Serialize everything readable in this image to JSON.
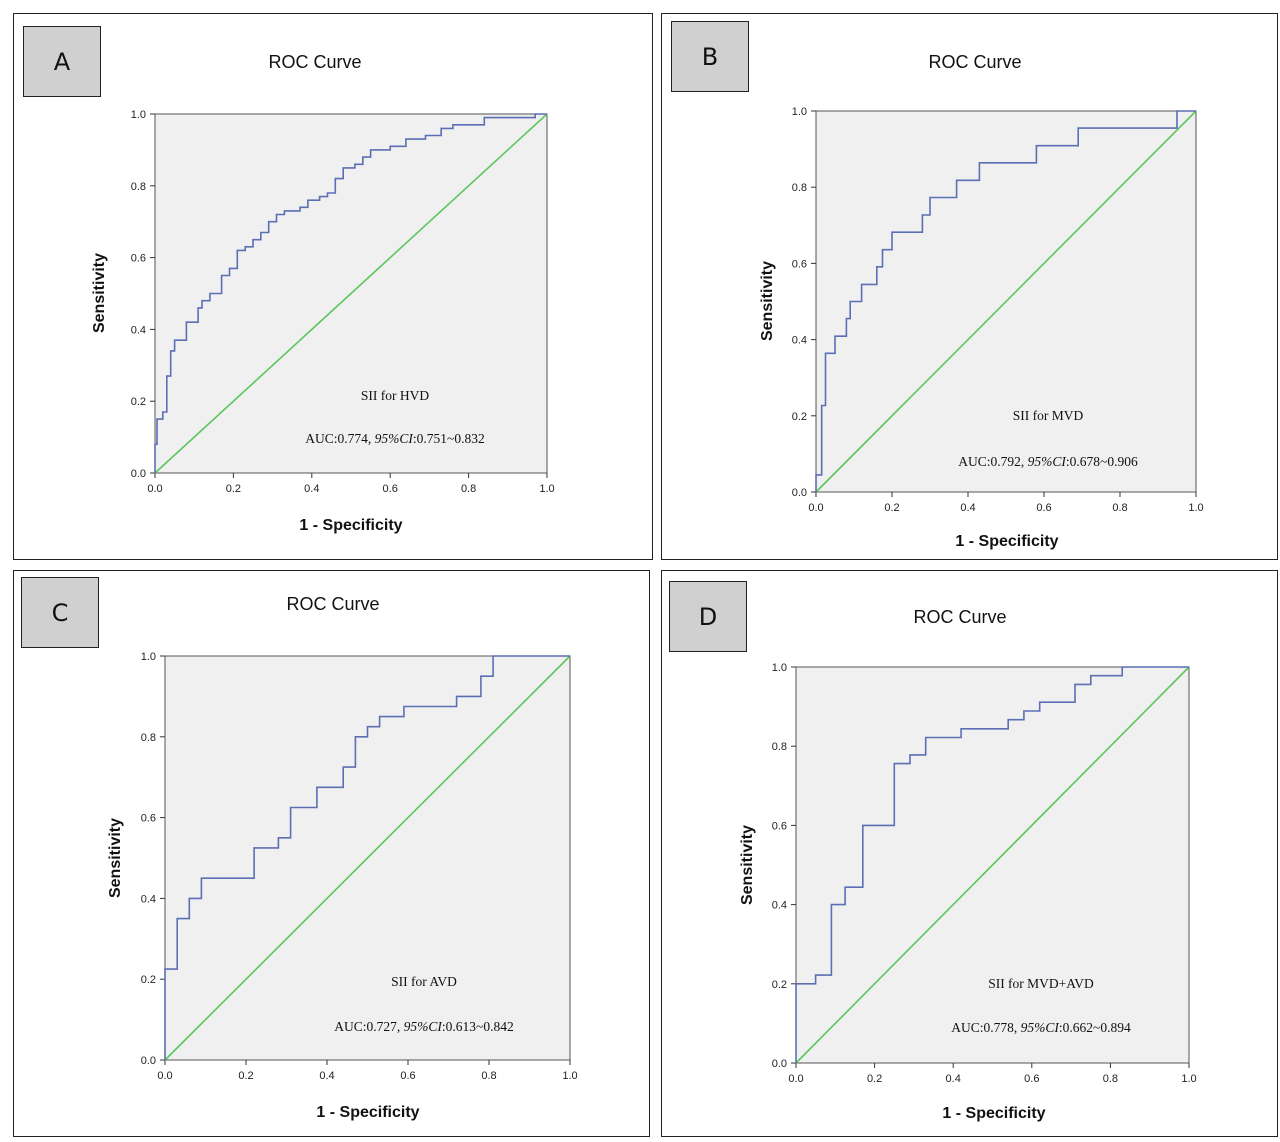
{
  "colors": {
    "roc_curve": "#5b6fb5",
    "reference_line": "#5bc75b",
    "plot_bg": "#f0f0f0",
    "letter_bg": "#d0d0d0"
  },
  "panels": [
    {
      "letter": "A",
      "title": "ROC Curve",
      "xlabel": "1 - Specificity",
      "ylabel": "Sensitivity",
      "annotation": "SII for HVD",
      "auc_text": "AUC:0.774, ",
      "ci_label": "95%CI",
      "ci_text": ":0.751~0.832"
    },
    {
      "letter": "B",
      "title": "ROC Curve",
      "xlabel": "1 - Specificity",
      "ylabel": "Sensitivity",
      "annotation": "SII for MVD",
      "auc_text": "AUC:0.792, ",
      "ci_label": "95%CI",
      "ci_text": ":0.678~0.906"
    },
    {
      "letter": "C",
      "title": "ROC Curve",
      "xlabel": "1 - Specificity",
      "ylabel": "Sensitivity",
      "annotation": "SII for AVD",
      "auc_text": "AUC:0.727, ",
      "ci_label": "95%CI",
      "ci_text": ":0.613~0.842"
    },
    {
      "letter": "D",
      "title": "ROC Curve",
      "xlabel": "1 - Specificity",
      "ylabel": "Sensitivity",
      "annotation": "SII for MVD+AVD",
      "auc_text": "AUC:0.778, ",
      "ci_label": "95%CI",
      "ci_text": ":0.662~0.894"
    }
  ],
  "chart_data": [
    {
      "type": "line",
      "title": "ROC Curve",
      "xlabel": "1 - Specificity",
      "ylabel": "Sensitivity",
      "xlim": [
        0,
        1
      ],
      "ylim": [
        0,
        1
      ],
      "ticks": [
        "0.0",
        "0.2",
        "0.4",
        "0.6",
        "0.8",
        "1.0"
      ],
      "auc": 0.774,
      "ci": [
        0.751,
        0.832
      ],
      "series": [
        {
          "values": [
            [
              0,
              0
            ],
            [
              0,
              0.08
            ],
            [
              0.005,
              0.08
            ],
            [
              0.005,
              0.15
            ],
            [
              0.02,
              0.15
            ],
            [
              0.02,
              0.17
            ],
            [
              0.03,
              0.17
            ],
            [
              0.03,
              0.27
            ],
            [
              0.04,
              0.27
            ],
            [
              0.04,
              0.34
            ],
            [
              0.05,
              0.34
            ],
            [
              0.05,
              0.37
            ],
            [
              0.08,
              0.37
            ],
            [
              0.08,
              0.42
            ],
            [
              0.11,
              0.42
            ],
            [
              0.11,
              0.46
            ],
            [
              0.12,
              0.46
            ],
            [
              0.12,
              0.48
            ],
            [
              0.14,
              0.48
            ],
            [
              0.14,
              0.5
            ],
            [
              0.17,
              0.5
            ],
            [
              0.17,
              0.55
            ],
            [
              0.19,
              0.55
            ],
            [
              0.19,
              0.57
            ],
            [
              0.21,
              0.57
            ],
            [
              0.21,
              0.62
            ],
            [
              0.23,
              0.62
            ],
            [
              0.23,
              0.63
            ],
            [
              0.25,
              0.63
            ],
            [
              0.25,
              0.65
            ],
            [
              0.27,
              0.65
            ],
            [
              0.27,
              0.67
            ],
            [
              0.29,
              0.67
            ],
            [
              0.29,
              0.7
            ],
            [
              0.31,
              0.7
            ],
            [
              0.31,
              0.72
            ],
            [
              0.33,
              0.72
            ],
            [
              0.33,
              0.73
            ],
            [
              0.37,
              0.73
            ],
            [
              0.37,
              0.74
            ],
            [
              0.39,
              0.74
            ],
            [
              0.39,
              0.76
            ],
            [
              0.42,
              0.76
            ],
            [
              0.42,
              0.77
            ],
            [
              0.44,
              0.77
            ],
            [
              0.44,
              0.78
            ],
            [
              0.46,
              0.78
            ],
            [
              0.46,
              0.82
            ],
            [
              0.48,
              0.82
            ],
            [
              0.48,
              0.85
            ],
            [
              0.51,
              0.85
            ],
            [
              0.51,
              0.86
            ],
            [
              0.53,
              0.86
            ],
            [
              0.53,
              0.88
            ],
            [
              0.55,
              0.88
            ],
            [
              0.55,
              0.9
            ],
            [
              0.6,
              0.9
            ],
            [
              0.6,
              0.91
            ],
            [
              0.64,
              0.91
            ],
            [
              0.64,
              0.93
            ],
            [
              0.69,
              0.93
            ],
            [
              0.69,
              0.94
            ],
            [
              0.73,
              0.94
            ],
            [
              0.73,
              0.96
            ],
            [
              0.76,
              0.96
            ],
            [
              0.76,
              0.97
            ],
            [
              0.84,
              0.97
            ],
            [
              0.84,
              0.99
            ],
            [
              0.97,
              0.99
            ],
            [
              0.97,
              1.0
            ],
            [
              1,
              1
            ]
          ]
        },
        {
          "values": [
            [
              0,
              0
            ],
            [
              1,
              1
            ]
          ]
        }
      ]
    },
    {
      "type": "line",
      "title": "ROC Curve",
      "xlabel": "1 - Specificity",
      "ylabel": "Sensitivity",
      "xlim": [
        0,
        1
      ],
      "ylim": [
        0,
        1
      ],
      "ticks": [
        "0.0",
        "0.2",
        "0.4",
        "0.6",
        "0.8",
        "1.0"
      ],
      "auc": 0.792,
      "ci": [
        0.678,
        0.906
      ],
      "series": [
        {
          "values": [
            [
              0,
              0
            ],
            [
              0,
              0.045
            ],
            [
              0.015,
              0.045
            ],
            [
              0.015,
              0.227
            ],
            [
              0.025,
              0.227
            ],
            [
              0.025,
              0.364
            ],
            [
              0.05,
              0.364
            ],
            [
              0.05,
              0.409
            ],
            [
              0.08,
              0.409
            ],
            [
              0.08,
              0.455
            ],
            [
              0.09,
              0.455
            ],
            [
              0.09,
              0.5
            ],
            [
              0.12,
              0.5
            ],
            [
              0.12,
              0.545
            ],
            [
              0.16,
              0.545
            ],
            [
              0.16,
              0.591
            ],
            [
              0.175,
              0.591
            ],
            [
              0.175,
              0.636
            ],
            [
              0.2,
              0.636
            ],
            [
              0.2,
              0.682
            ],
            [
              0.28,
              0.682
            ],
            [
              0.28,
              0.727
            ],
            [
              0.3,
              0.727
            ],
            [
              0.3,
              0.773
            ],
            [
              0.37,
              0.773
            ],
            [
              0.37,
              0.818
            ],
            [
              0.43,
              0.818
            ],
            [
              0.43,
              0.864
            ],
            [
              0.58,
              0.864
            ],
            [
              0.58,
              0.909
            ],
            [
              0.69,
              0.909
            ],
            [
              0.69,
              0.955
            ],
            [
              0.95,
              0.955
            ],
            [
              0.95,
              1.0
            ],
            [
              1,
              1
            ]
          ]
        },
        {
          "values": [
            [
              0,
              0
            ],
            [
              1,
              1
            ]
          ]
        }
      ]
    },
    {
      "type": "line",
      "title": "ROC Curve",
      "xlabel": "1 - Specificity",
      "ylabel": "Sensitivity",
      "xlim": [
        0,
        1
      ],
      "ylim": [
        0,
        1
      ],
      "ticks": [
        "0.0",
        "0.2",
        "0.4",
        "0.6",
        "0.8",
        "1.0"
      ],
      "auc": 0.727,
      "ci": [
        0.613,
        0.842
      ],
      "series": [
        {
          "values": [
            [
              0,
              0
            ],
            [
              0,
              0.225
            ],
            [
              0.03,
              0.225
            ],
            [
              0.03,
              0.35
            ],
            [
              0.06,
              0.35
            ],
            [
              0.06,
              0.4
            ],
            [
              0.09,
              0.4
            ],
            [
              0.09,
              0.45
            ],
            [
              0.22,
              0.45
            ],
            [
              0.22,
              0.525
            ],
            [
              0.28,
              0.525
            ],
            [
              0.28,
              0.55
            ],
            [
              0.31,
              0.55
            ],
            [
              0.31,
              0.625
            ],
            [
              0.375,
              0.625
            ],
            [
              0.375,
              0.675
            ],
            [
              0.44,
              0.675
            ],
            [
              0.44,
              0.725
            ],
            [
              0.47,
              0.725
            ],
            [
              0.47,
              0.8
            ],
            [
              0.5,
              0.8
            ],
            [
              0.5,
              0.825
            ],
            [
              0.53,
              0.825
            ],
            [
              0.53,
              0.85
            ],
            [
              0.59,
              0.85
            ],
            [
              0.59,
              0.875
            ],
            [
              0.72,
              0.875
            ],
            [
              0.72,
              0.9
            ],
            [
              0.78,
              0.9
            ],
            [
              0.78,
              0.95
            ],
            [
              0.81,
              0.95
            ],
            [
              0.81,
              1.0
            ],
            [
              1,
              1
            ]
          ]
        },
        {
          "values": [
            [
              0,
              0
            ],
            [
              1,
              1
            ]
          ]
        }
      ]
    },
    {
      "type": "line",
      "title": "ROC Curve",
      "xlabel": "1 - Specificity",
      "ylabel": "Sensitivity",
      "xlim": [
        0,
        1
      ],
      "ylim": [
        0,
        1
      ],
      "ticks": [
        "0.0",
        "0.2",
        "0.4",
        "0.6",
        "0.8",
        "1.0"
      ],
      "auc": 0.778,
      "ci": [
        0.662,
        0.894
      ],
      "series": [
        {
          "values": [
            [
              0,
              0
            ],
            [
              0,
              0.2
            ],
            [
              0.05,
              0.2
            ],
            [
              0.05,
              0.222
            ],
            [
              0.09,
              0.222
            ],
            [
              0.09,
              0.4
            ],
            [
              0.125,
              0.4
            ],
            [
              0.125,
              0.444
            ],
            [
              0.17,
              0.444
            ],
            [
              0.17,
              0.6
            ],
            [
              0.25,
              0.6
            ],
            [
              0.25,
              0.756
            ],
            [
              0.29,
              0.756
            ],
            [
              0.29,
              0.778
            ],
            [
              0.33,
              0.778
            ],
            [
              0.33,
              0.822
            ],
            [
              0.42,
              0.822
            ],
            [
              0.42,
              0.844
            ],
            [
              0.54,
              0.844
            ],
            [
              0.54,
              0.867
            ],
            [
              0.58,
              0.867
            ],
            [
              0.58,
              0.889
            ],
            [
              0.62,
              0.889
            ],
            [
              0.62,
              0.911
            ],
            [
              0.71,
              0.911
            ],
            [
              0.71,
              0.956
            ],
            [
              0.75,
              0.956
            ],
            [
              0.75,
              0.978
            ],
            [
              0.83,
              0.978
            ],
            [
              0.83,
              1.0
            ],
            [
              1,
              1
            ]
          ]
        },
        {
          "values": [
            [
              0,
              0
            ],
            [
              1,
              1
            ]
          ]
        }
      ]
    }
  ]
}
